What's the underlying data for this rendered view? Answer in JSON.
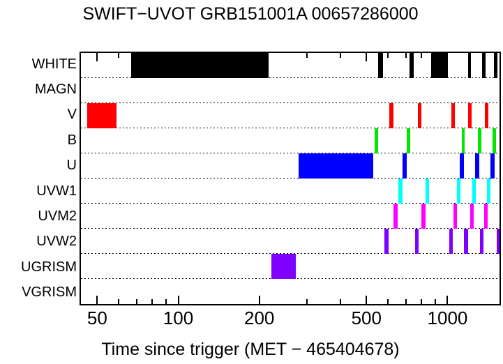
{
  "chart_data": {
    "type": "interval-timeline",
    "title": "SWIFT−UVOT GRB151001A 00657286000",
    "xlabel": "Time since trigger (MET − 465404678)",
    "x_scale": "log",
    "x_range": [
      43.5,
      1560
    ],
    "x_unit": "s",
    "x_major_ticks": [
      50,
      100,
      200,
      500,
      1000
    ],
    "x_major_tick_labels": [
      "50",
      "100",
      "200",
      "500",
      "1000"
    ],
    "x_minor_ticks": [
      60,
      70,
      80,
      90,
      300,
      400,
      600,
      700,
      800,
      900
    ],
    "legend_position": "none",
    "grid": "dotted-row-separators",
    "rows": [
      {
        "label": "WHITE",
        "color": "#000000",
        "intervals": [
          [
            67,
            216
          ],
          [
            554,
            577
          ],
          [
            723,
            749
          ],
          [
            869,
            1002
          ],
          [
            1190,
            1225
          ],
          [
            1347,
            1387
          ],
          [
            1490,
            1534
          ]
        ]
      },
      {
        "label": "MAGN",
        "color": "#000000",
        "intervals": []
      },
      {
        "label": "V",
        "color": "#ff0000",
        "intervals": [
          [
            46,
            59
          ],
          [
            609,
            631
          ],
          [
            777,
            800
          ],
          [
            1032,
            1063
          ],
          [
            1196,
            1232
          ],
          [
            1377,
            1419
          ]
        ]
      },
      {
        "label": "B",
        "color": "#00e600",
        "intervals": [
          [
            535,
            554
          ],
          [
            706,
            727
          ],
          [
            1132,
            1159
          ],
          [
            1298,
            1337
          ],
          [
            1470,
            1515
          ]
        ]
      },
      {
        "label": "U",
        "color": "#0000ff",
        "intervals": [
          [
            279,
            531
          ],
          [
            681,
            706
          ],
          [
            1108,
            1148
          ],
          [
            1268,
            1313
          ],
          [
            1445,
            1498
          ]
        ]
      },
      {
        "label": "UVW1",
        "color": "#00ffff",
        "intervals": [
          [
            658,
            681
          ],
          [
            829,
            854
          ],
          [
            1082,
            1114
          ],
          [
            1239,
            1275
          ],
          [
            1403,
            1445
          ]
        ]
      },
      {
        "label": "UVM2",
        "color": "#ff00ff",
        "intervals": [
          [
            631,
            654
          ],
          [
            800,
            829
          ],
          [
            1050,
            1082
          ],
          [
            1211,
            1253
          ],
          [
            1369,
            1411
          ]
        ]
      },
      {
        "label": "UVW2",
        "color": "#8000ff",
        "intervals": [
          [
            584,
            605
          ],
          [
            758,
            781
          ],
          [
            1014,
            1044
          ],
          [
            1153,
            1196
          ],
          [
            1321,
            1361
          ],
          [
            1524,
            1560
          ]
        ]
      },
      {
        "label": "UGRISM",
        "color": "#8000ff",
        "intervals": [
          [
            222,
            274
          ]
        ]
      },
      {
        "label": "VGRISM",
        "color": "#8000ff",
        "intervals": []
      }
    ]
  }
}
